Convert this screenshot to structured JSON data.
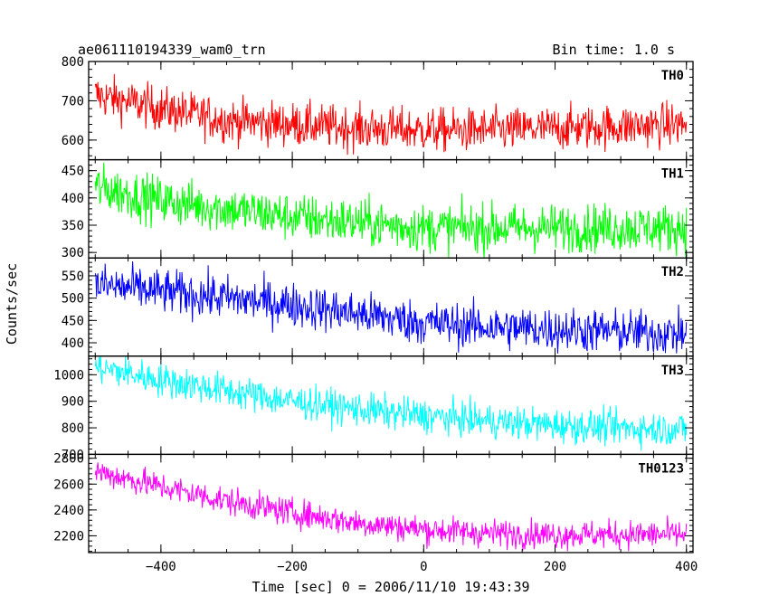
{
  "chart_data": {
    "type": "line",
    "title": "ae061110194339_wam0_trn",
    "bin_time_label": "Bin time: 1.0 s",
    "xlabel": "Time [sec] 0 = 2006/11/10 19:43:39",
    "ylabel": "Counts/sec",
    "xlim": [
      -510,
      410
    ],
    "x_ticks": [
      -400,
      -200,
      0,
      200,
      400
    ],
    "x_tick_labels": [
      "−400",
      "−200",
      "0",
      "200",
      "400"
    ],
    "grid": false,
    "panels": [
      {
        "name": "TH0",
        "color": "#ff0000",
        "ylim": [
          550,
          800
        ],
        "y_ticks": [
          600,
          700,
          800
        ],
        "y_tick_labels": [
          "600",
          "700",
          "800"
        ],
        "trend": {
          "x": [
            -500,
            -400,
            -300,
            -200,
            -100,
            0,
            100,
            200,
            300,
            400
          ],
          "y": [
            715,
            680,
            650,
            640,
            630,
            625,
            625,
            630,
            635,
            640
          ]
        },
        "noise": 28
      },
      {
        "name": "TH1",
        "color": "#00ff00",
        "ylim": [
          290,
          470
        ],
        "y_ticks": [
          300,
          350,
          400,
          450
        ],
        "y_tick_labels": [
          "300",
          "350",
          "400",
          "450"
        ],
        "trend": {
          "x": [
            -500,
            -400,
            -300,
            -200,
            -100,
            0,
            100,
            200,
            300,
            400
          ],
          "y": [
            420,
            395,
            380,
            365,
            355,
            345,
            345,
            345,
            345,
            345
          ]
        },
        "noise": 22
      },
      {
        "name": "TH2",
        "color": "#0000ff",
        "ylim": [
          370,
          590
        ],
        "y_ticks": [
          400,
          450,
          500,
          550
        ],
        "y_tick_labels": [
          "400",
          "450",
          "500",
          "550"
        ],
        "trend": {
          "x": [
            -500,
            -400,
            -300,
            -200,
            -100,
            0,
            100,
            200,
            300,
            400
          ],
          "y": [
            530,
            515,
            500,
            485,
            465,
            445,
            435,
            430,
            425,
            420
          ]
        },
        "noise": 25
      },
      {
        "name": "TH3",
        "color": "#00ffff",
        "ylim": [
          700,
          1070
        ],
        "y_ticks": [
          700,
          800,
          900,
          1000
        ],
        "y_tick_labels": [
          "700",
          "800",
          "900",
          "1000"
        ],
        "trend": {
          "x": [
            -500,
            -400,
            -300,
            -200,
            -100,
            0,
            100,
            200,
            300,
            400
          ],
          "y": [
            1030,
            980,
            940,
            900,
            870,
            845,
            825,
            810,
            800,
            795
          ]
        },
        "noise": 32
      },
      {
        "name": "TH0123",
        "color": "#ff00ff",
        "ylim": [
          2070,
          2830
        ],
        "y_ticks": [
          2200,
          2400,
          2600,
          2800
        ],
        "y_tick_labels": [
          "2200",
          "2400",
          "2600",
          "2800"
        ],
        "trend": {
          "x": [
            -500,
            -400,
            -300,
            -200,
            -100,
            0,
            100,
            200,
            300,
            400
          ],
          "y": [
            2700,
            2580,
            2470,
            2380,
            2300,
            2250,
            2220,
            2210,
            2210,
            2210
          ]
        },
        "noise": 55
      }
    ]
  }
}
